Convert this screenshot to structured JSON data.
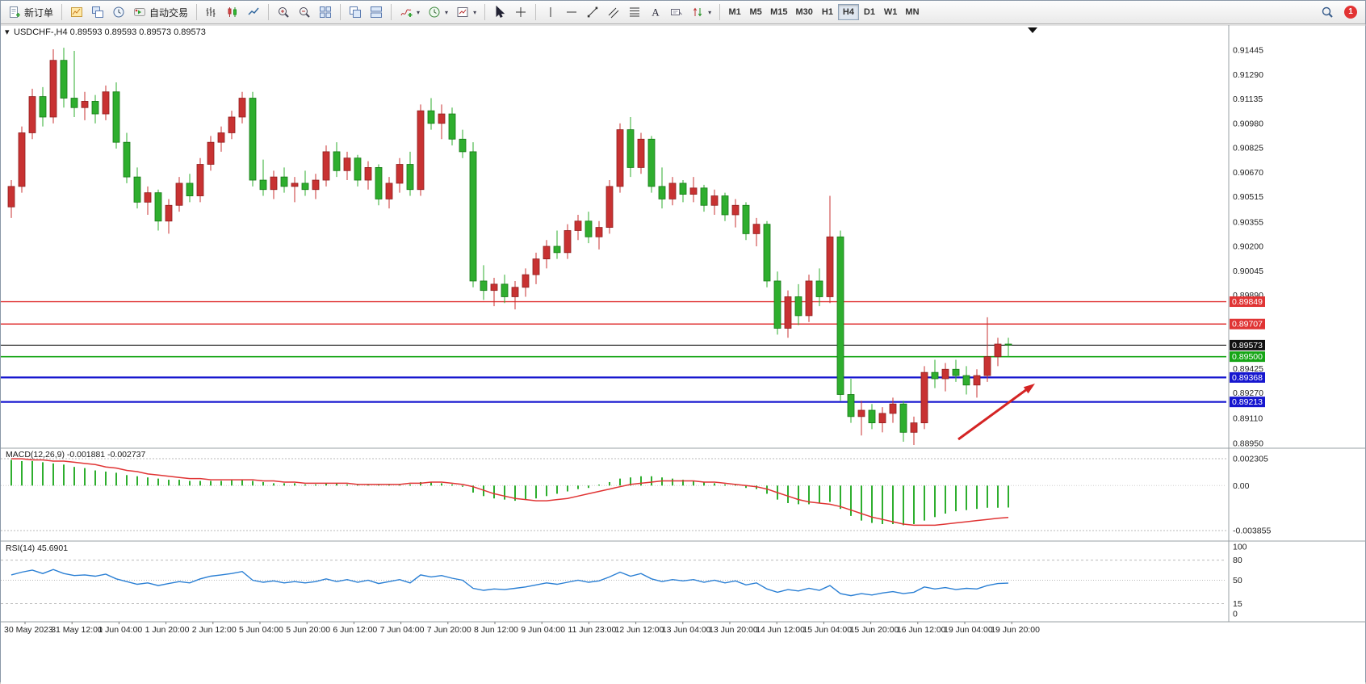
{
  "toolbar": {
    "new_order_label": "新订单",
    "autotrading_label": "自动交易",
    "timeframes": [
      "M1",
      "M5",
      "M15",
      "M30",
      "H1",
      "H4",
      "D1",
      "W1",
      "MN"
    ],
    "active_timeframe": "H4",
    "badge_count": "1",
    "icons": {
      "caret": "▾"
    }
  },
  "chart_header": {
    "collapse_icon": "▾",
    "symbol_info": "USDCHF-,H4  0.89593 0.89593 0.89573 0.89573"
  },
  "price_axis": {
    "plain": [
      "0.91445",
      "0.91290",
      "0.91135",
      "0.90980",
      "0.90825",
      "0.90670",
      "0.90515",
      "0.90355",
      "0.90200",
      "0.90045",
      "0.89890",
      "0.89425",
      "0.89270",
      "0.89110",
      "0.88950"
    ],
    "boxes": [
      {
        "text": "0.89849",
        "bg": "#e03434"
      },
      {
        "text": "0.89707",
        "bg": "#e03434"
      },
      {
        "text": "0.89573",
        "bg": "#111111"
      },
      {
        "text": "0.89500",
        "bg": "#16a516"
      },
      {
        "text": "0.89368",
        "bg": "#1616cf"
      },
      {
        "text": "0.89213",
        "bg": "#1616cf"
      }
    ]
  },
  "annotation_arrow": {
    "color": "#d42424",
    "from": [
      1186,
      514
    ],
    "to": [
      1271,
      452
    ]
  },
  "chart_data": [
    {
      "type": "candlestick",
      "symbol": "USDCHF-",
      "timeframe": "H4",
      "up_color": "#c83232",
      "down_color": "#2eae2e",
      "ylim": [
        0.8895,
        0.91445
      ],
      "levels": [
        {
          "price": 0.89849,
          "color": "#e03434",
          "width": 1.4
        },
        {
          "price": 0.89707,
          "color": "#e03434",
          "width": 1.4
        },
        {
          "price": 0.89573,
          "color": "#111111",
          "width": 1.1
        },
        {
          "price": 0.895,
          "color": "#16a516",
          "width": 1.6
        },
        {
          "price": 0.89368,
          "color": "#1616cf",
          "width": 2.2
        },
        {
          "price": 0.89213,
          "color": "#1616cf",
          "width": 2.2
        }
      ],
      "ohlc": [
        [
          0.9045,
          0.9062,
          0.9038,
          0.9058
        ],
        [
          0.9058,
          0.9096,
          0.9054,
          0.9092
        ],
        [
          0.9092,
          0.912,
          0.9088,
          0.9115
        ],
        [
          0.9115,
          0.9121,
          0.9096,
          0.9102
        ],
        [
          0.9102,
          0.9145,
          0.9098,
          0.9138
        ],
        [
          0.9138,
          0.9146,
          0.9108,
          0.9114
        ],
        [
          0.9114,
          0.9144,
          0.9102,
          0.9108
        ],
        [
          0.9108,
          0.9118,
          0.91,
          0.9112
        ],
        [
          0.9112,
          0.9116,
          0.9098,
          0.9104
        ],
        [
          0.9104,
          0.9122,
          0.91,
          0.9118
        ],
        [
          0.9118,
          0.9124,
          0.9082,
          0.9086
        ],
        [
          0.9086,
          0.9092,
          0.906,
          0.9064
        ],
        [
          0.9064,
          0.907,
          0.9044,
          0.9048
        ],
        [
          0.9048,
          0.9058,
          0.904,
          0.9054
        ],
        [
          0.9054,
          0.9056,
          0.903,
          0.9036
        ],
        [
          0.9036,
          0.905,
          0.9028,
          0.9046
        ],
        [
          0.9046,
          0.9064,
          0.9042,
          0.906
        ],
        [
          0.906,
          0.9066,
          0.9048,
          0.9052
        ],
        [
          0.9052,
          0.9076,
          0.9048,
          0.9072
        ],
        [
          0.9072,
          0.909,
          0.9068,
          0.9086
        ],
        [
          0.9086,
          0.9096,
          0.908,
          0.9092
        ],
        [
          0.9092,
          0.9106,
          0.9088,
          0.9102
        ],
        [
          0.9102,
          0.9118,
          0.9098,
          0.9114
        ],
        [
          0.9114,
          0.9118,
          0.9058,
          0.9062
        ],
        [
          0.9062,
          0.9075,
          0.9052,
          0.9056
        ],
        [
          0.9056,
          0.9068,
          0.905,
          0.9064
        ],
        [
          0.9064,
          0.907,
          0.9054,
          0.9058
        ],
        [
          0.9058,
          0.9064,
          0.9048,
          0.906
        ],
        [
          0.906,
          0.9068,
          0.9052,
          0.9056
        ],
        [
          0.9056,
          0.9066,
          0.905,
          0.9062
        ],
        [
          0.9062,
          0.9084,
          0.9058,
          0.908
        ],
        [
          0.908,
          0.9086,
          0.9064,
          0.9068
        ],
        [
          0.9068,
          0.908,
          0.9062,
          0.9076
        ],
        [
          0.9076,
          0.9078,
          0.9058,
          0.9062
        ],
        [
          0.9062,
          0.9074,
          0.9056,
          0.907
        ],
        [
          0.907,
          0.9072,
          0.9046,
          0.905
        ],
        [
          0.905,
          0.9064,
          0.9044,
          0.906
        ],
        [
          0.906,
          0.9076,
          0.9054,
          0.9072
        ],
        [
          0.9072,
          0.908,
          0.9052,
          0.9056
        ],
        [
          0.9056,
          0.911,
          0.9052,
          0.9106
        ],
        [
          0.9106,
          0.9114,
          0.9094,
          0.9098
        ],
        [
          0.9098,
          0.911,
          0.9088,
          0.9104
        ],
        [
          0.9104,
          0.9108,
          0.9084,
          0.9088
        ],
        [
          0.9088,
          0.9094,
          0.9076,
          0.908
        ],
        [
          0.908,
          0.9086,
          0.8994,
          0.8998
        ],
        [
          0.8998,
          0.9008,
          0.8986,
          0.8992
        ],
        [
          0.8992,
          0.9,
          0.8982,
          0.8996
        ],
        [
          0.8996,
          0.9002,
          0.8984,
          0.8988
        ],
        [
          0.8988,
          0.8998,
          0.898,
          0.8994
        ],
        [
          0.8994,
          0.9006,
          0.8988,
          0.9002
        ],
        [
          0.9002,
          0.9016,
          0.8996,
          0.9012
        ],
        [
          0.9012,
          0.9024,
          0.9006,
          0.902
        ],
        [
          0.902,
          0.903,
          0.9012,
          0.9016
        ],
        [
          0.9016,
          0.9034,
          0.9012,
          0.903
        ],
        [
          0.903,
          0.904,
          0.9024,
          0.9036
        ],
        [
          0.9036,
          0.9042,
          0.9022,
          0.9026
        ],
        [
          0.9026,
          0.9036,
          0.9018,
          0.9032
        ],
        [
          0.9032,
          0.9062,
          0.9028,
          0.9058
        ],
        [
          0.9058,
          0.9098,
          0.9054,
          0.9094
        ],
        [
          0.9094,
          0.9102,
          0.9064,
          0.907
        ],
        [
          0.907,
          0.9092,
          0.9066,
          0.9088
        ],
        [
          0.9088,
          0.909,
          0.9054,
          0.9058
        ],
        [
          0.9058,
          0.907,
          0.9044,
          0.905
        ],
        [
          0.905,
          0.9064,
          0.9046,
          0.906
        ],
        [
          0.906,
          0.9062,
          0.9048,
          0.9053
        ],
        [
          0.9053,
          0.9064,
          0.9048,
          0.9057
        ],
        [
          0.9057,
          0.9059,
          0.9042,
          0.9046
        ],
        [
          0.9046,
          0.9056,
          0.904,
          0.9052
        ],
        [
          0.9052,
          0.9054,
          0.9036,
          0.904
        ],
        [
          0.904,
          0.905,
          0.9032,
          0.9046
        ],
        [
          0.9046,
          0.9048,
          0.9024,
          0.9028
        ],
        [
          0.9028,
          0.9038,
          0.902,
          0.9034
        ],
        [
          0.9034,
          0.9036,
          0.8994,
          0.8998
        ],
        [
          0.8998,
          0.9004,
          0.8964,
          0.8968
        ],
        [
          0.8968,
          0.8992,
          0.8962,
          0.8988
        ],
        [
          0.8988,
          0.8996,
          0.897,
          0.8976
        ],
        [
          0.8976,
          0.9002,
          0.8972,
          0.8998
        ],
        [
          0.8998,
          0.9006,
          0.8982,
          0.8988
        ],
        [
          0.8988,
          0.9052,
          0.8984,
          0.9026
        ],
        [
          0.9026,
          0.903,
          0.8922,
          0.8926
        ],
        [
          0.8926,
          0.8936,
          0.8908,
          0.8912
        ],
        [
          0.8912,
          0.8922,
          0.89,
          0.8916
        ],
        [
          0.8916,
          0.892,
          0.8904,
          0.8908
        ],
        [
          0.8908,
          0.8918,
          0.8902,
          0.8914
        ],
        [
          0.8914,
          0.8924,
          0.8908,
          0.892
        ],
        [
          0.892,
          0.8922,
          0.8896,
          0.8902
        ],
        [
          0.8902,
          0.8912,
          0.8894,
          0.8908
        ],
        [
          0.8908,
          0.8944,
          0.8904,
          0.894
        ],
        [
          0.894,
          0.8948,
          0.893,
          0.8936
        ],
        [
          0.8936,
          0.8946,
          0.8928,
          0.8942
        ],
        [
          0.8942,
          0.8948,
          0.8934,
          0.8938
        ],
        [
          0.8938,
          0.8944,
          0.8926,
          0.8932
        ],
        [
          0.8932,
          0.8942,
          0.8924,
          0.8938
        ],
        [
          0.8938,
          0.8975,
          0.8934,
          0.895
        ],
        [
          0.895,
          0.8962,
          0.8944,
          0.8958
        ],
        [
          0.8958,
          0.8962,
          0.895,
          0.89573
        ]
      ],
      "x_labels": [
        "30 May 2023",
        "31 May 12:00",
        "1 Jun 04:00",
        "1 Jun 20:00",
        "2 Jun 12:00",
        "5 Jun 04:00",
        "5 Jun 20:00",
        "6 Jun 12:00",
        "7 Jun 04:00",
        "7 Jun 20:00",
        "8 Jun 12:00",
        "9 Jun 04:00",
        "11 Jun 23:00",
        "12 Jun 12:00",
        "13 Jun 04:00",
        "13 Jun 20:00",
        "14 Jun 12:00",
        "15 Jun 04:00",
        "15 Jun 20:00",
        "16 Jun 12:00",
        "19 Jun 04:00",
        "19 Jun 20:00"
      ]
    },
    {
      "type": "bar",
      "label": "MACD(12,26,9) -0.001881 -0.002737",
      "bar_color": "#2eae2e",
      "signal_color": "#e03434",
      "ylim": [
        -0.003855,
        0.002305
      ],
      "y_ticks": [
        "0.002305",
        "0.00",
        "-0.003855"
      ],
      "values": [
        0.0022,
        0.0021,
        0.0021,
        0.002,
        0.0019,
        0.0018,
        0.0016,
        0.0015,
        0.0013,
        0.0012,
        0.0011,
        0.0009,
        0.0008,
        0.0007,
        0.0006,
        0.0005,
        0.0005,
        0.0004,
        0.0004,
        0.0004,
        0.0004,
        0.0005,
        0.0005,
        0.0004,
        0.0003,
        0.0002,
        0.0002,
        0.0002,
        0.0001,
        0.0001,
        0.0002,
        0.0002,
        0.0001,
        0.0001,
        0.0001,
        0.0,
        0.0001,
        0.0001,
        0.0001,
        0.0003,
        0.0003,
        0.0002,
        0.0001,
        -0.0001,
        -0.0006,
        -0.0009,
        -0.0011,
        -0.0012,
        -0.0013,
        -0.0012,
        -0.0011,
        -0.0009,
        -0.0007,
        -0.0005,
        -0.0003,
        -0.0002,
        0.0,
        0.0003,
        0.0006,
        0.0007,
        0.0008,
        0.0008,
        0.0007,
        0.0006,
        0.0005,
        0.0004,
        0.0003,
        0.0002,
        0.0001,
        0.0,
        -0.0002,
        -0.0003,
        -0.0007,
        -0.0012,
        -0.0015,
        -0.0016,
        -0.0016,
        -0.0015,
        -0.0014,
        -0.002,
        -0.0026,
        -0.003,
        -0.0032,
        -0.0033,
        -0.0033,
        -0.0034,
        -0.0033,
        -0.003,
        -0.0027,
        -0.0024,
        -0.0022,
        -0.0021,
        -0.002,
        -0.0019,
        -0.0019,
        -0.001881
      ],
      "signal": [
        0.0023,
        0.0023,
        0.0022,
        0.0022,
        0.0021,
        0.0021,
        0.002,
        0.0019,
        0.0018,
        0.0016,
        0.0015,
        0.0013,
        0.0012,
        0.001,
        0.0009,
        0.0008,
        0.0007,
        0.0006,
        0.0006,
        0.0005,
        0.0005,
        0.0005,
        0.0005,
        0.0005,
        0.0004,
        0.0004,
        0.0003,
        0.0003,
        0.0002,
        0.0002,
        0.0002,
        0.0002,
        0.0002,
        0.0001,
        0.0001,
        0.0001,
        0.0001,
        0.0001,
        0.0002,
        0.0002,
        0.0003,
        0.0003,
        0.0002,
        0.0001,
        -0.0001,
        -0.0004,
        -0.0007,
        -0.0009,
        -0.0011,
        -0.0012,
        -0.0013,
        -0.0013,
        -0.0012,
        -0.0011,
        -0.0009,
        -0.0007,
        -0.0005,
        -0.0003,
        -0.0001,
        0.0001,
        0.0002,
        0.0003,
        0.0004,
        0.0004,
        0.0004,
        0.0004,
        0.0003,
        0.0003,
        0.0002,
        0.0001,
        0.0,
        -0.0001,
        -0.0003,
        -0.0006,
        -0.0009,
        -0.0012,
        -0.0014,
        -0.0015,
        -0.0016,
        -0.0018,
        -0.0021,
        -0.0024,
        -0.0027,
        -0.0029,
        -0.0031,
        -0.0033,
        -0.0034,
        -0.0034,
        -0.0034,
        -0.0033,
        -0.0032,
        -0.0031,
        -0.003,
        -0.0029,
        -0.0028,
        -0.002737
      ]
    },
    {
      "type": "line",
      "label": "RSI(14) 45.6901",
      "line_color": "#2a7fd4",
      "ylim": [
        0,
        100
      ],
      "y_ticks": [
        "100",
        "80",
        "50",
        "15",
        "0"
      ],
      "levels": [
        80,
        50,
        15
      ],
      "values": [
        58,
        62,
        65,
        60,
        66,
        60,
        57,
        58,
        56,
        59,
        52,
        48,
        44,
        46,
        42,
        45,
        48,
        46,
        52,
        56,
        58,
        60,
        63,
        50,
        47,
        49,
        46,
        48,
        46,
        48,
        52,
        48,
        51,
        47,
        50,
        45,
        48,
        51,
        46,
        58,
        55,
        57,
        53,
        50,
        38,
        35,
        37,
        36,
        38,
        40,
        43,
        46,
        44,
        47,
        50,
        47,
        49,
        55,
        62,
        56,
        60,
        52,
        48,
        51,
        49,
        51,
        47,
        50,
        46,
        49,
        43,
        46,
        37,
        32,
        36,
        34,
        38,
        35,
        42,
        30,
        27,
        30,
        28,
        31,
        33,
        30,
        32,
        40,
        37,
        39,
        36,
        38,
        37,
        42,
        45,
        45.69
      ]
    }
  ]
}
